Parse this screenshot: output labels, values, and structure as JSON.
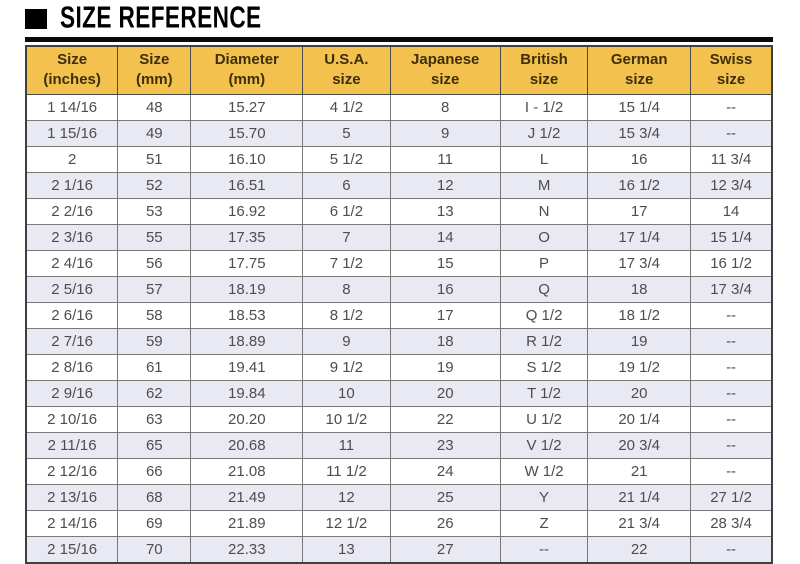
{
  "title": {
    "bullet": "■",
    "text": "SIZE REFERENCE"
  },
  "colors": {
    "header_bg": "#F3C14D",
    "header_text": "#3E2F08",
    "row_alt_bg": "#E9E9F3",
    "row_bg": "#FFFFFF",
    "cell_text": "#4D4D4D",
    "cell_border": "#787878",
    "outer_border": "#3F3F3F",
    "title_color": "#000000"
  },
  "chart_data": {
    "type": "table",
    "title": "SIZE REFERENCE",
    "columns": [
      [
        "Size",
        "(inches)"
      ],
      [
        "Size",
        "(mm)"
      ],
      [
        "Diameter",
        "(mm)"
      ],
      [
        "U.S.A.",
        "size"
      ],
      [
        "Japanese",
        "size"
      ],
      [
        "British",
        "size"
      ],
      [
        "German",
        "size"
      ],
      [
        "Swiss",
        "size"
      ]
    ],
    "rows": [
      [
        "1 14/16",
        "48",
        "15.27",
        "4 1/2",
        "8",
        "I - 1/2",
        "15 1/4",
        "--"
      ],
      [
        "1 15/16",
        "49",
        "15.70",
        "5",
        "9",
        "J 1/2",
        "15 3/4",
        "--"
      ],
      [
        "2",
        "51",
        "16.10",
        "5 1/2",
        "11",
        "L",
        "16",
        "11 3/4"
      ],
      [
        "2 1/16",
        "52",
        "16.51",
        "6",
        "12",
        "M",
        "16 1/2",
        "12 3/4"
      ],
      [
        "2 2/16",
        "53",
        "16.92",
        "6 1/2",
        "13",
        "N",
        "17",
        "14"
      ],
      [
        "2 3/16",
        "55",
        "17.35",
        "7",
        "14",
        "O",
        "17 1/4",
        "15 1/4"
      ],
      [
        "2 4/16",
        "56",
        "17.75",
        "7 1/2",
        "15",
        "P",
        "17 3/4",
        "16 1/2"
      ],
      [
        "2 5/16",
        "57",
        "18.19",
        "8",
        "16",
        "Q",
        "18",
        "17 3/4"
      ],
      [
        "2 6/16",
        "58",
        "18.53",
        "8 1/2",
        "17",
        "Q 1/2",
        "18 1/2",
        "--"
      ],
      [
        "2 7/16",
        "59",
        "18.89",
        "9",
        "18",
        "R 1/2",
        "19",
        "--"
      ],
      [
        "2 8/16",
        "61",
        "19.41",
        "9 1/2",
        "19",
        "S 1/2",
        "19 1/2",
        "--"
      ],
      [
        "2 9/16",
        "62",
        "19.84",
        "10",
        "20",
        "T 1/2",
        "20",
        "--"
      ],
      [
        "2 10/16",
        "63",
        "20.20",
        "10 1/2",
        "22",
        "U 1/2",
        "20 1/4",
        "--"
      ],
      [
        "2 11/16",
        "65",
        "20.68",
        "11",
        "23",
        "V 1/2",
        "20 3/4",
        "--"
      ],
      [
        "2 12/16",
        "66",
        "21.08",
        "11 1/2",
        "24",
        "W 1/2",
        "21",
        "--"
      ],
      [
        "2 13/16",
        "68",
        "21.49",
        "12",
        "25",
        "Y",
        "21 1/4",
        "27 1/2"
      ],
      [
        "2 14/16",
        "69",
        "21.89",
        "12 1/2",
        "26",
        "Z",
        "21 3/4",
        "28 3/4"
      ],
      [
        "2 15/16",
        "70",
        "22.33",
        "13",
        "27",
        "--",
        "22",
        "--"
      ]
    ],
    "column_widths_pct": [
      12.3,
      9.8,
      15.0,
      11.7,
      14.8,
      11.7,
      13.8,
      10.9
    ],
    "layout_hints": {
      "header_rows": 1,
      "alternating_row_shading": true,
      "grid": true
    }
  }
}
